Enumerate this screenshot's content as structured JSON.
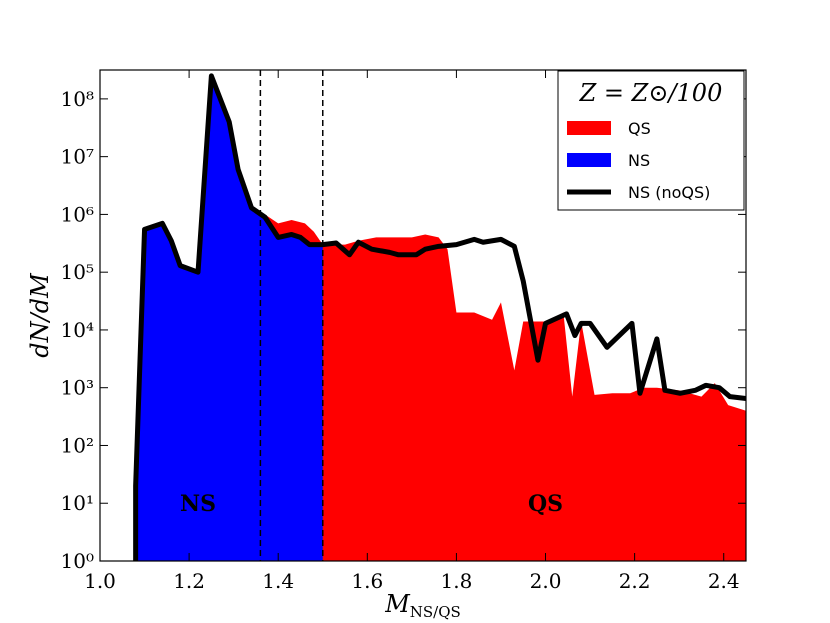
{
  "chart_data": {
    "type": "area",
    "xlabel": "M",
    "xlabel_sub": "NS/QS",
    "ylabel": "dN/dM",
    "ylog": true,
    "xlim": [
      1.0,
      2.45
    ],
    "ylim": [
      1,
      316227766
    ],
    "xticks": [
      {
        "value": 1,
        "label": "1.0"
      },
      1.2,
      1.4,
      1.6,
      1.8,
      {
        "value": 2,
        "label": "2.0"
      },
      2.2,
      2.4
    ],
    "yticks": [
      {
        "value": 1,
        "label": "10⁰"
      },
      {
        "value": 10,
        "label": "10¹"
      },
      {
        "value": 100,
        "label": "10²"
      },
      {
        "value": 1000,
        "label": "10³"
      },
      {
        "value": 10000,
        "label": "10⁴"
      },
      {
        "value": 100000,
        "label": "10⁵"
      },
      {
        "value": 1000000,
        "label": "10⁶"
      },
      {
        "value": 10000000,
        "label": "10⁷"
      },
      {
        "value": 100000000,
        "label": "10⁸"
      }
    ],
    "vlines": [
      1.36,
      1.5
    ],
    "legend_title": "Z = Z⊙/100",
    "legend": "upper right",
    "annotations": [
      "NS",
      "QS"
    ],
    "series": [
      {
        "name": "QS",
        "kind": "area",
        "color": "#ff0000",
        "x": [
          1.34,
          1.37,
          1.4,
          1.43,
          1.46,
          1.48,
          1.5,
          1.52,
          1.55,
          1.58,
          1.62,
          1.66,
          1.7,
          1.73,
          1.76,
          1.78,
          1.8,
          1.84,
          1.88,
          1.9,
          1.93,
          1.95,
          1.98,
          2.01,
          2.04,
          2.06,
          2.08,
          2.11,
          2.15,
          2.19,
          2.22,
          2.25,
          2.3,
          2.35,
          2.38,
          2.41,
          2.45
        ],
        "values": [
          1200000,
          1000000,
          700000,
          800000,
          700000,
          500000,
          300000,
          300000,
          300000,
          350000,
          400000,
          400000,
          400000,
          450000,
          400000,
          250000,
          20000,
          20000,
          15000,
          30000,
          2000,
          14000,
          14000,
          14000,
          20000,
          700,
          14000,
          750,
          800,
          800,
          1000,
          1000,
          900,
          700,
          1200,
          500,
          400
        ]
      },
      {
        "name": "NS",
        "kind": "area",
        "color": "#0000ff",
        "x": [
          1.08,
          1.08,
          1.1,
          1.14,
          1.16,
          1.18,
          1.22,
          1.25,
          1.29,
          1.31,
          1.34,
          1.37,
          1.4,
          1.43,
          1.45,
          1.47,
          1.5
        ],
        "values": [
          1,
          20,
          550000,
          700000,
          350000,
          130000,
          100000,
          250000000,
          40000000,
          6000000,
          1300000,
          900000,
          400000,
          450000,
          400000,
          300000,
          300000
        ]
      },
      {
        "name": "NS (noQS)",
        "kind": "line",
        "color": "#000000",
        "x": [
          1.08,
          1.08,
          1.1,
          1.14,
          1.16,
          1.18,
          1.22,
          1.25,
          1.29,
          1.31,
          1.34,
          1.37,
          1.4,
          1.43,
          1.45,
          1.47,
          1.5,
          1.53,
          1.56,
          1.58,
          1.61,
          1.65,
          1.67,
          1.71,
          1.73,
          1.76,
          1.8,
          1.84,
          1.86,
          1.9,
          1.93,
          1.95,
          1.983,
          2.0,
          2.047,
          2.066,
          2.08,
          2.1,
          2.138,
          2.194,
          2.212,
          2.25,
          2.268,
          2.302,
          2.336,
          2.36,
          2.39,
          2.414,
          2.45
        ],
        "values": [
          1,
          20,
          550000,
          700000,
          350000,
          130000,
          100000,
          250000000,
          40000000,
          6000000,
          1300000,
          900000,
          400000,
          450000,
          400000,
          300000,
          300000,
          320000,
          200000,
          330000,
          250000,
          220000,
          200000,
          200000,
          250000,
          280000,
          300000,
          370000,
          330000,
          370000,
          280000,
          70000,
          3000,
          13000,
          19000,
          8000,
          13000,
          13000,
          5000,
          13000,
          800,
          7000,
          900,
          800,
          900,
          1100,
          1000,
          700,
          650
        ]
      }
    ]
  }
}
